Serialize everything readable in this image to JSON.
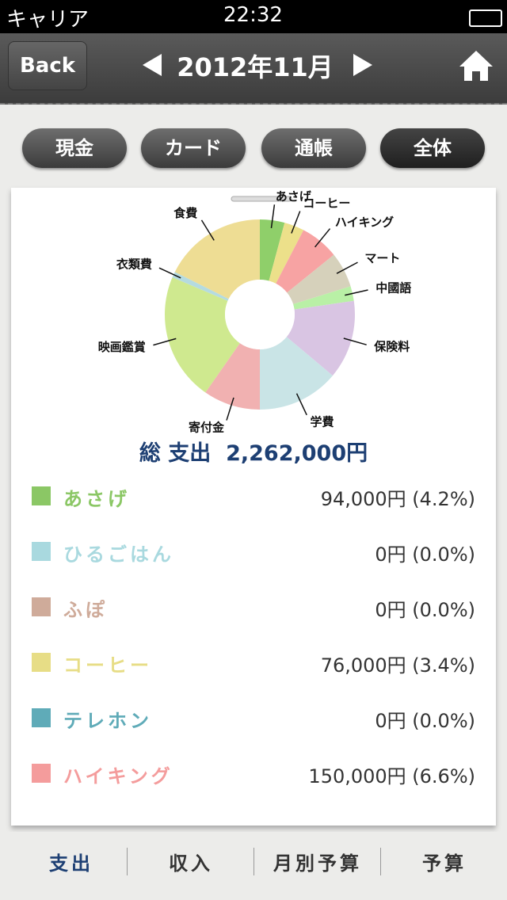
{
  "status_bar": {
    "carrier": "キャリア",
    "time": "22:32"
  },
  "nav": {
    "back": "Back",
    "title": "2012年11月"
  },
  "filters": [
    "現金",
    "カード",
    "通帳",
    "全体"
  ],
  "chart_data": {
    "type": "donut",
    "categories": [
      "あさげ",
      "コーヒー",
      "ハイキング",
      "マート",
      "中國語",
      "保険料",
      "学費",
      "寄付金",
      "映画鑑賞",
      "衣類費",
      "食費"
    ],
    "values": [
      4.2,
      3.4,
      6.6,
      6,
      2.5,
      13.4,
      13.9,
      9.7,
      21.7,
      1,
      17.6
    ],
    "colors": [
      "#8fcf6a",
      "#ece08a",
      "#f7a3a3",
      "#d6d1bb",
      "#b9f0a6",
      "#d9c5e3",
      "#c9e4e6",
      "#f1b1b1",
      "#cfe98f",
      "#b5dbe0",
      "#eedd94"
    ]
  },
  "total": {
    "label": "総 支出",
    "value": "2,262,000円"
  },
  "list": [
    {
      "name": "あさげ",
      "amount": "94,000円 (4.2%)",
      "color": "#8bc765"
    },
    {
      "name": "ひるごはん",
      "amount": "0円 (0.0%)",
      "color": "#a9d9df"
    },
    {
      "name": "ふぽ",
      "amount": "0円 (0.0%)",
      "color": "#cfab9a"
    },
    {
      "name": "コーヒー",
      "amount": "76,000円 (3.4%)",
      "color": "#e7dd86"
    },
    {
      "name": "テレホン",
      "amount": "0円 (0.0%)",
      "color": "#5fabb8"
    },
    {
      "name": "ハイキング",
      "amount": "150,000円 (6.6%)",
      "color": "#f49c9c"
    }
  ],
  "tabs": [
    "支出",
    "収入",
    "月別予算",
    "予算"
  ]
}
